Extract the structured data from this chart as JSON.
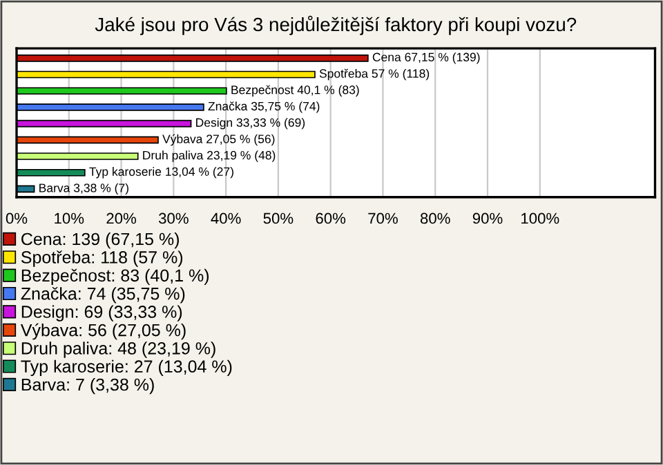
{
  "chart_data": {
    "type": "bar",
    "orientation": "horizontal",
    "title": "Jaké jsou pro Vás 3 nejdůležitější faktory při koupi vozu?",
    "categories": [
      null,
      null,
      null,
      null,
      null,
      null,
      null,
      null,
      null
    ],
    "series": [
      {
        "name": "Cena: 139 (67,15 %)",
        "color": "#c0140a",
        "values": [
          67.15,
          null,
          null,
          null,
          null,
          null,
          null,
          null,
          null
        ],
        "value_labels": [
          "Cena 67,15 % (139)",
          null,
          null,
          null,
          null,
          null,
          null,
          null,
          null
        ]
      },
      {
        "name": "Spotřeba: 118 (57 %)",
        "color": "#ffe600",
        "values": [
          null,
          57,
          null,
          null,
          null,
          null,
          null,
          null,
          null
        ],
        "value_labels": [
          null,
          "Spotřeba 57 % (118)",
          null,
          null,
          null,
          null,
          null,
          null,
          null
        ]
      },
      {
        "name": "Bezpečnost: 83 (40,1 %)",
        "color": "#1ec81e",
        "values": [
          null,
          null,
          40.1,
          null,
          null,
          null,
          null,
          null,
          null
        ],
        "value_labels": [
          null,
          null,
          "Bezpečnost 40,1 % (83)",
          null,
          null,
          null,
          null,
          null,
          null
        ]
      },
      {
        "name": "Značka: 74 (35,75 %)",
        "color": "#4678f0",
        "values": [
          null,
          null,
          null,
          35.75,
          null,
          null,
          null,
          null,
          null
        ],
        "value_labels": [
          null,
          null,
          null,
          "Značka 35,75 % (74)",
          null,
          null,
          null,
          null,
          null
        ]
      },
      {
        "name": "Design: 69 (33,33 %)",
        "color": "#c814dc",
        "values": [
          null,
          null,
          null,
          null,
          33.33,
          null,
          null,
          null,
          null
        ],
        "value_labels": [
          null,
          null,
          null,
          null,
          "Design 33,33 % (69)",
          null,
          null,
          null,
          null
        ]
      },
      {
        "name": "Výbava: 56 (27,05 %)",
        "color": "#e6460a",
        "values": [
          null,
          null,
          null,
          null,
          null,
          27.05,
          null,
          null,
          null
        ],
        "value_labels": [
          null,
          null,
          null,
          null,
          null,
          "Výbava 27,05 % (56)",
          null,
          null,
          null
        ]
      },
      {
        "name": "Druh paliva: 48 (23,19 %)",
        "color": "#c8ff78",
        "values": [
          null,
          null,
          null,
          null,
          null,
          null,
          23.19,
          null,
          null
        ],
        "value_labels": [
          null,
          null,
          null,
          null,
          null,
          null,
          "Druh paliva 23,19 % (48)",
          null,
          null
        ]
      },
      {
        "name": "Typ karoserie: 27 (13,04 %)",
        "color": "#148c5a",
        "values": [
          null,
          null,
          null,
          null,
          null,
          null,
          null,
          13.04,
          null
        ],
        "value_labels": [
          null,
          null,
          null,
          null,
          null,
          null,
          null,
          "Typ karoserie 13,04 % (27)",
          null
        ]
      },
      {
        "name": "Barva: 7 (3,38 %)",
        "color": "#1e7891",
        "values": [
          null,
          null,
          null,
          null,
          null,
          null,
          null,
          null,
          3.38
        ],
        "value_labels": [
          null,
          null,
          null,
          null,
          null,
          null,
          null,
          null,
          "Barva 3,38 % (7)"
        ]
      }
    ],
    "xlim": [
      0,
      122
    ],
    "xticks": [
      {
        "value": 0,
        "label": "0%"
      },
      {
        "value": 10,
        "label": "10%"
      },
      {
        "value": 20,
        "label": "20%"
      },
      {
        "value": 30,
        "label": "30%"
      },
      {
        "value": 40,
        "label": "40%"
      },
      {
        "value": 50,
        "label": "50%"
      },
      {
        "value": 60,
        "label": "60%"
      },
      {
        "value": 70,
        "label": "70%"
      },
      {
        "value": 80,
        "label": "80%"
      },
      {
        "value": 90,
        "label": "90%"
      },
      {
        "value": 100,
        "label": "100%"
      }
    ],
    "grid": "x",
    "legend": "bottom"
  }
}
